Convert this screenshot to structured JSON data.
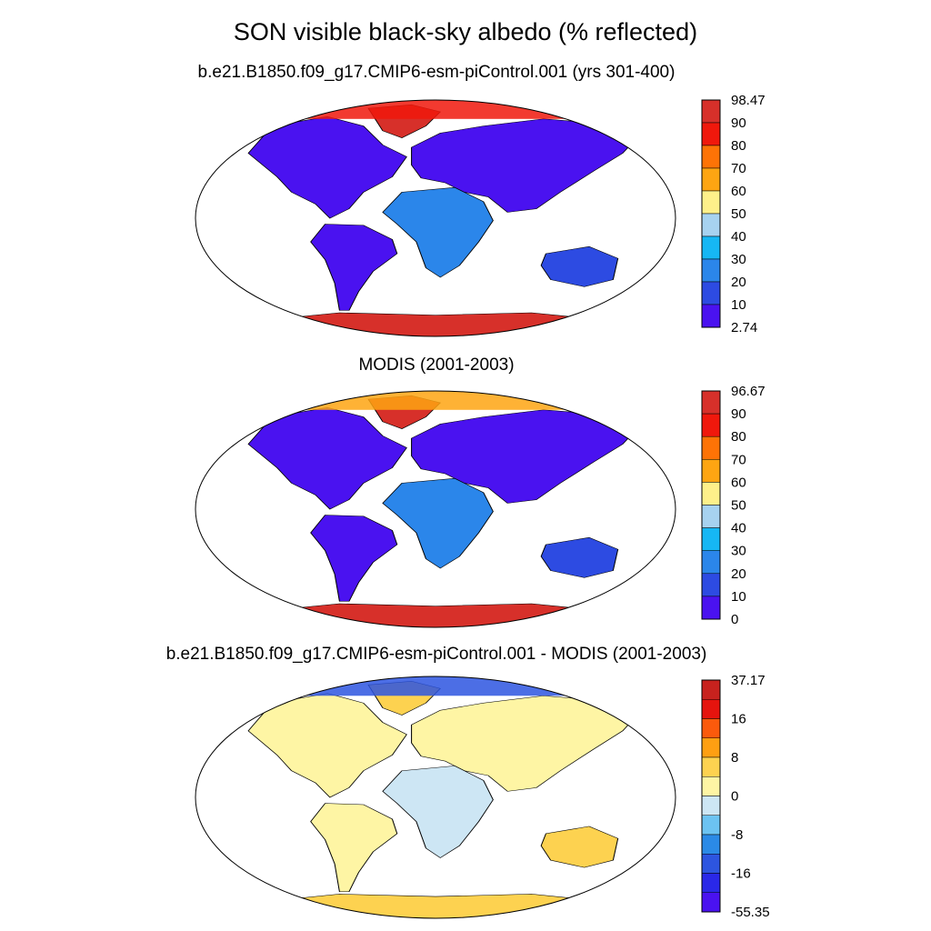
{
  "title": "SON visible black-sky albedo (% reflected)",
  "panels": [
    {
      "id": "model",
      "title": "b.e21.B1850.f09_g17.CMIP6-esm-piControl.001 (yrs 301-400)",
      "colorbar": {
        "labels": [
          "98.47",
          "90",
          "80",
          "70",
          "60",
          "50",
          "40",
          "30",
          "20",
          "10",
          "2.74"
        ],
        "colors": [
          "#d7302a",
          "#f0180c",
          "#fe7306",
          "#fea512",
          "#fef08a",
          "#a7d2f0",
          "#16b7f4",
          "#2b86ea",
          "#2d4be2",
          "#4a12f0"
        ]
      }
    },
    {
      "id": "modis",
      "title": "MODIS (2001-2003)",
      "colorbar": {
        "labels": [
          "96.67",
          "90",
          "80",
          "70",
          "60",
          "50",
          "40",
          "30",
          "20",
          "10",
          "0"
        ],
        "colors": [
          "#d7302a",
          "#f0180c",
          "#fe7306",
          "#fea512",
          "#fef08a",
          "#a7d2f0",
          "#16b7f4",
          "#2b86ea",
          "#2d4be2",
          "#4a12f0"
        ]
      }
    },
    {
      "id": "diff",
      "title": "b.e21.B1850.f09_g17.CMIP6-esm-piControl.001 - MODIS (2001-2003)",
      "colorbar": {
        "labels": [
          "37.17",
          "16",
          "8",
          "0",
          "-8",
          "-16",
          "-55.35"
        ],
        "colors": [
          "#c8221e",
          "#e5140e",
          "#fb5a0c",
          "#fe9f12",
          "#fdd250",
          "#fef5a4",
          "#cde6f4",
          "#6cc3f2",
          "#2b8ae6",
          "#2d55e0",
          "#2a28e8",
          "#4a12f0"
        ]
      }
    }
  ]
}
